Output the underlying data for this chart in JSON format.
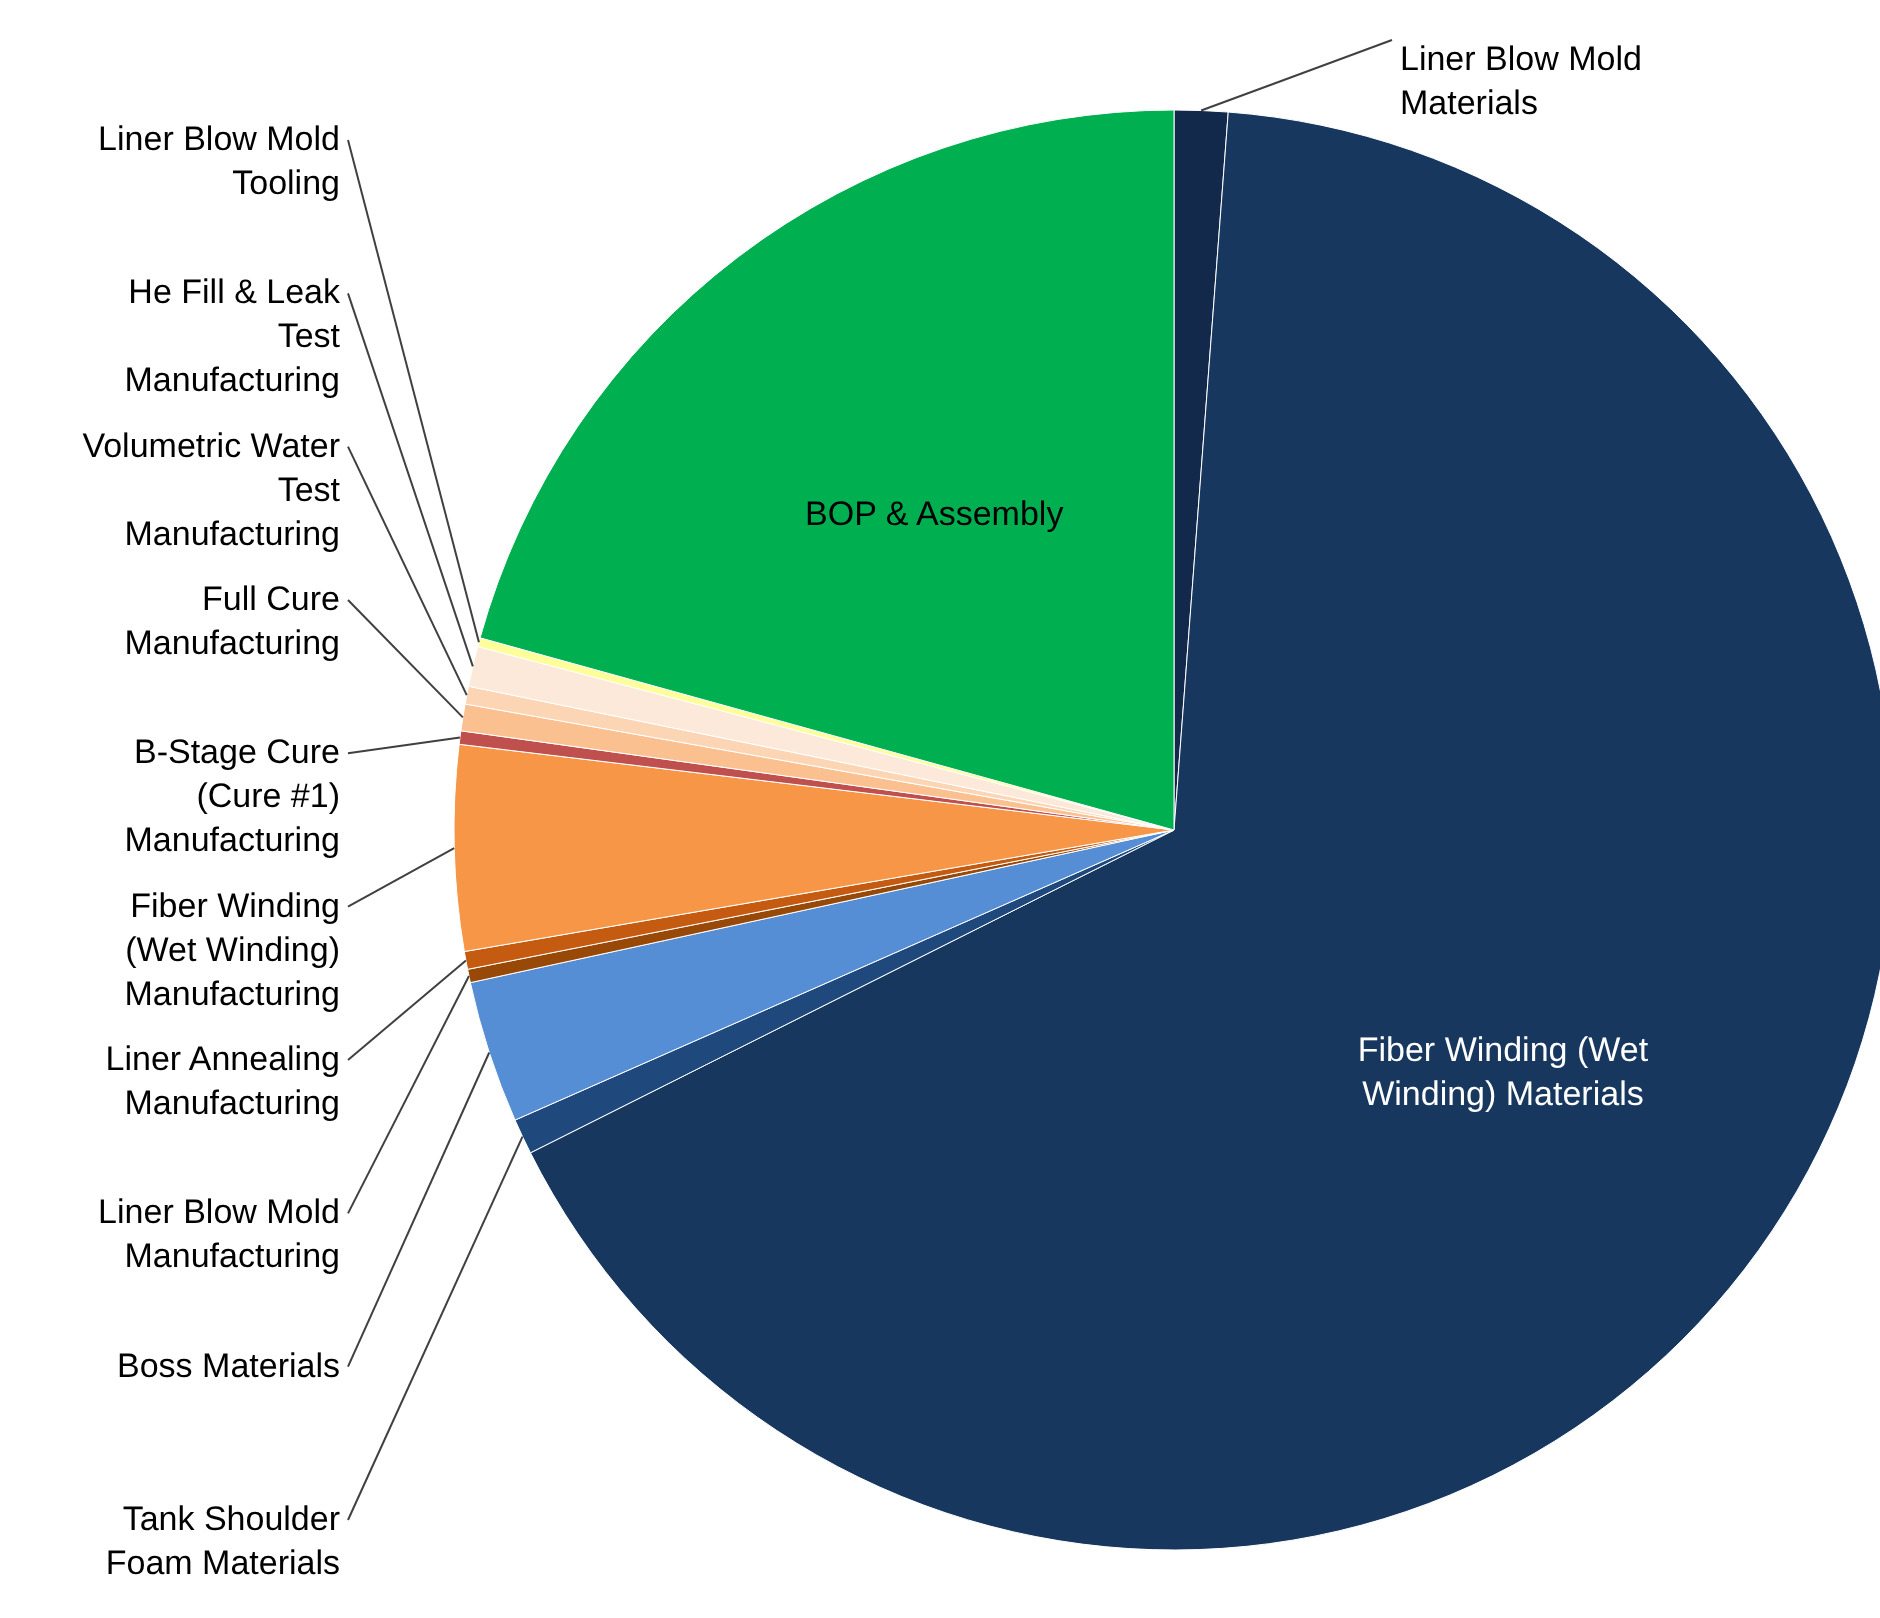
{
  "chart_data": {
    "type": "pie",
    "categories": [
      "Liner Blow Mold Materials",
      "Fiber Winding (Wet Winding) Materials",
      "Tank Shoulder Foam Materials",
      "Boss Materials",
      "Liner Blow Mold Manufacturing",
      "Liner Annealing Manufacturing",
      "Fiber Winding (Wet Winding) Manufacturing",
      "B-Stage Cure (Cure #1) Manufacturing",
      "Full Cure Manufacturing",
      "Volumetric Water Test Manufacturing",
      "He Fill & Leak Test Manufacturing",
      "Liner Blow Mold Tooling",
      "BOP & Assembly"
    ],
    "values": [
      1.2,
      66.4,
      0.8,
      3.2,
      0.3,
      0.4,
      4.6,
      0.3,
      0.6,
      0.4,
      0.9,
      0.2,
      20.7
    ],
    "colors": [
      "#13294b",
      "#17375e",
      "#1f497d",
      "#558ed5",
      "#984807",
      "#c55a11",
      "#f79646",
      "#c0504d",
      "#fac090",
      "#fcd5b5",
      "#fde9d9",
      "#ffff99",
      "#00b050"
    ]
  }
}
